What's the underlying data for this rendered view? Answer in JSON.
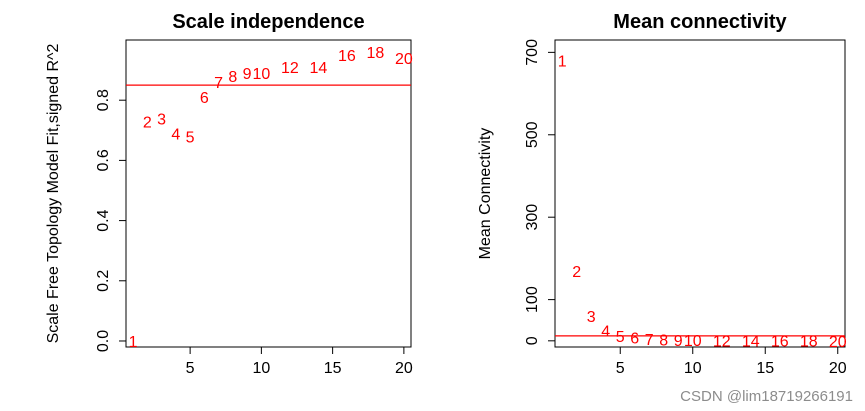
{
  "chart_data": [
    {
      "type": "scatter",
      "title": "Scale independence",
      "xlabel": "",
      "ylabel": "Scale Free Topology Model Fit,signed R^2",
      "xlim": [
        0.5,
        20.5
      ],
      "ylim": [
        -0.02,
        1.0
      ],
      "xticks": [
        5,
        10,
        15,
        20
      ],
      "yticks": [
        0.0,
        0.2,
        0.4,
        0.6,
        0.8
      ],
      "hline": 0.85,
      "grid": false,
      "points": [
        {
          "x": 1,
          "y": 0.0,
          "label": "1"
        },
        {
          "x": 2,
          "y": 0.73,
          "label": "2"
        },
        {
          "x": 3,
          "y": 0.74,
          "label": "3"
        },
        {
          "x": 4,
          "y": 0.69,
          "label": "4"
        },
        {
          "x": 5,
          "y": 0.68,
          "label": "5"
        },
        {
          "x": 6,
          "y": 0.81,
          "label": "6"
        },
        {
          "x": 7,
          "y": 0.86,
          "label": "7"
        },
        {
          "x": 8,
          "y": 0.88,
          "label": "8"
        },
        {
          "x": 9,
          "y": 0.89,
          "label": "9"
        },
        {
          "x": 10,
          "y": 0.89,
          "label": "10"
        },
        {
          "x": 12,
          "y": 0.91,
          "label": "12"
        },
        {
          "x": 14,
          "y": 0.91,
          "label": "14"
        },
        {
          "x": 16,
          "y": 0.95,
          "label": "16"
        },
        {
          "x": 18,
          "y": 0.96,
          "label": "18"
        },
        {
          "x": 20,
          "y": 0.94,
          "label": "20"
        }
      ]
    },
    {
      "type": "scatter",
      "title": "Mean connectivity",
      "xlabel": "",
      "ylabel": "Mean Connectivity",
      "xlim": [
        0.5,
        20.5
      ],
      "ylim": [
        -15,
        730
      ],
      "xticks": [
        5,
        10,
        15,
        20
      ],
      "yticks": [
        0,
        100,
        300,
        500,
        700
      ],
      "hline": 12,
      "grid": false,
      "points": [
        {
          "x": 1,
          "y": 680,
          "label": "1"
        },
        {
          "x": 2,
          "y": 170,
          "label": "2"
        },
        {
          "x": 3,
          "y": 60,
          "label": "3"
        },
        {
          "x": 4,
          "y": 25,
          "label": "4"
        },
        {
          "x": 5,
          "y": 12,
          "label": "5"
        },
        {
          "x": 6,
          "y": 8,
          "label": "6"
        },
        {
          "x": 7,
          "y": 5,
          "label": "7"
        },
        {
          "x": 8,
          "y": 3,
          "label": "8"
        },
        {
          "x": 9,
          "y": 2,
          "label": "9"
        },
        {
          "x": 10,
          "y": 2,
          "label": "10"
        },
        {
          "x": 12,
          "y": 1,
          "label": "12"
        },
        {
          "x": 14,
          "y": 1,
          "label": "14"
        },
        {
          "x": 16,
          "y": 1,
          "label": "16"
        },
        {
          "x": 18,
          "y": 1,
          "label": "18"
        },
        {
          "x": 20,
          "y": 0,
          "label": "20"
        }
      ]
    }
  ],
  "watermark": "CSDN @lim18719266191",
  "colors": {
    "points": "#ff0000",
    "refline": "#ff0000",
    "axes": "#000000"
  }
}
